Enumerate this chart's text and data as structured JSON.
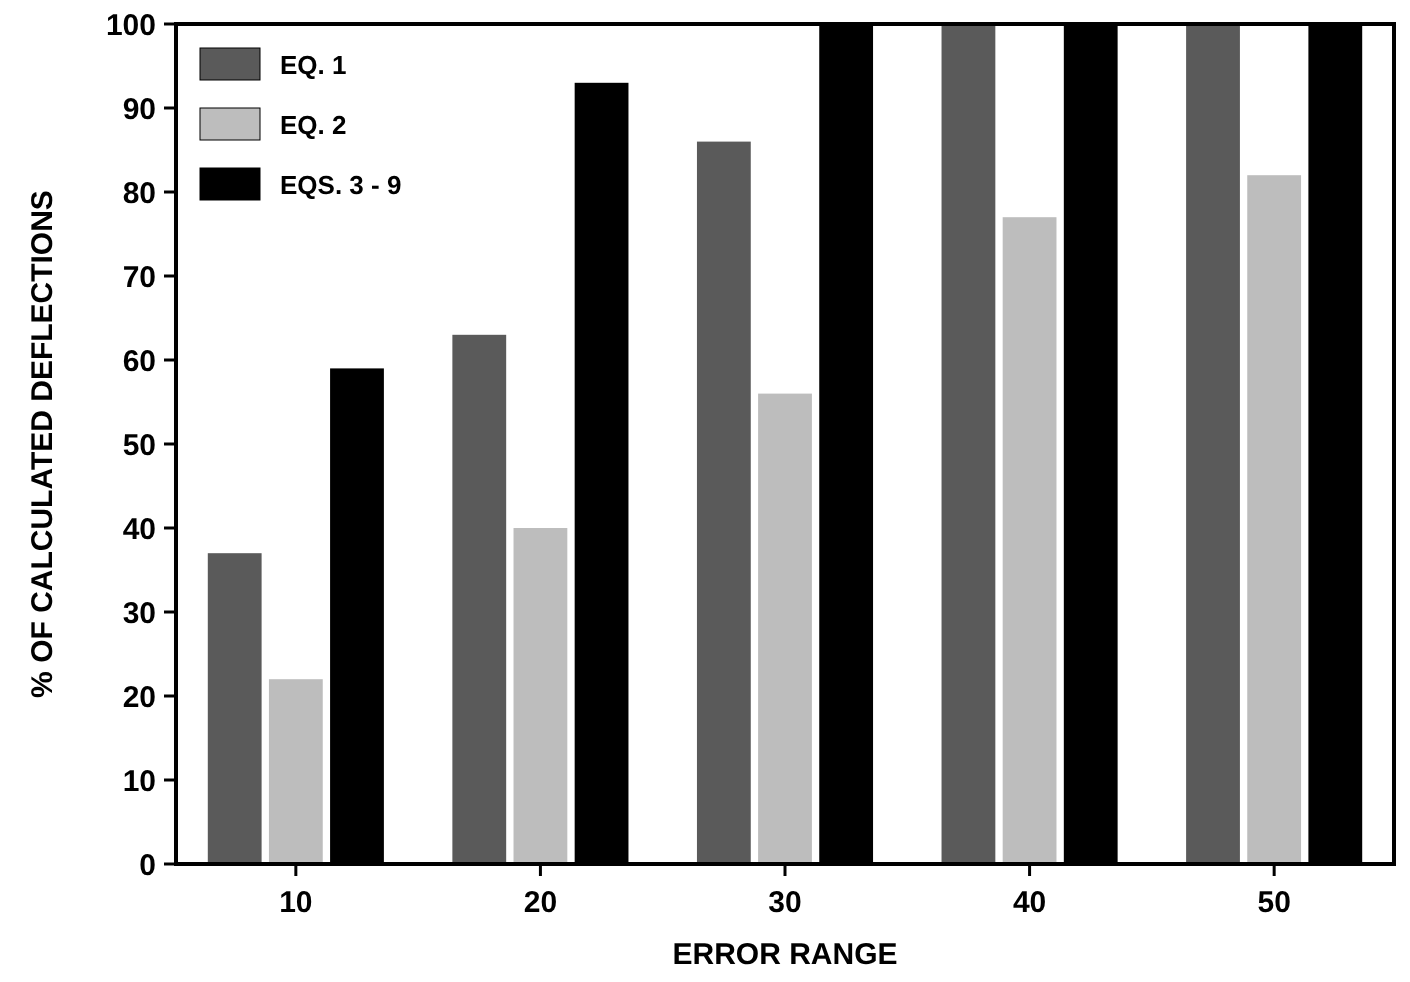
{
  "chart_data": {
    "type": "bar",
    "xlabel": "ERROR RANGE",
    "ylabel": "% OF CALCULATED DEFLECTIONS",
    "categories": [
      "10",
      "20",
      "30",
      "40",
      "50"
    ],
    "series": [
      {
        "name": "EQ. 1",
        "color": "#5a5a5a",
        "values": [
          37,
          63,
          86,
          100,
          100
        ]
      },
      {
        "name": "EQ. 2",
        "color": "#bdbdbd",
        "values": [
          22,
          40,
          56,
          77,
          82
        ]
      },
      {
        "name": "EQS. 3 - 9",
        "color": "#000000",
        "values": [
          59,
          93,
          100,
          100,
          100
        ]
      }
    ],
    "ylim": [
      0,
      100
    ],
    "yticks": [
      0,
      10,
      20,
      30,
      40,
      50,
      60,
      70,
      80,
      90,
      100
    ],
    "grid": false,
    "legend": "top left"
  }
}
